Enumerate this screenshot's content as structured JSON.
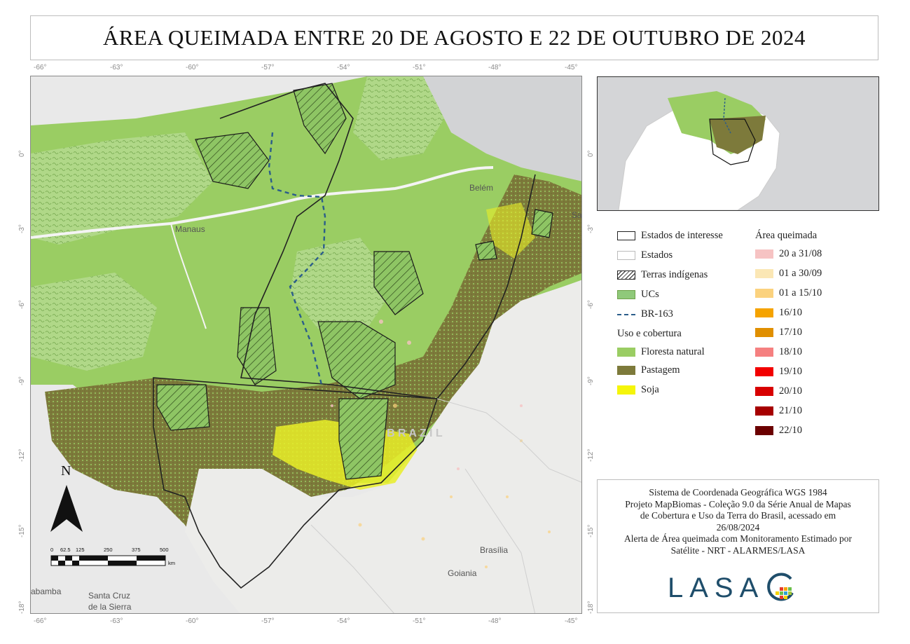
{
  "title": "ÁREA QUEIMADA ENTRE 20 DE AGOSTO E 22 DE OUTUBRO DE 2024",
  "longitude_ticks": [
    "-66°",
    "-63°",
    "-60°",
    "-57°",
    "-54°",
    "-51°",
    "-48°",
    "-45°"
  ],
  "latitude_ticks": [
    "0°",
    "-3°",
    "-6°",
    "-9°",
    "-12°",
    "-15°",
    "-18°"
  ],
  "place_labels": {
    "manaus": "Manaus",
    "belem": "Belém",
    "brazil": "B R A Z I L",
    "brasilia": "Brasília",
    "goiania": "Goiania",
    "santa_cruz_1": "Santa Cruz",
    "santa_cruz_2": "de la Sierra",
    "abamba": "abamba",
    "sa": "Sa"
  },
  "north_arrow": "N",
  "scale_bar": {
    "labels": [
      "0",
      "62.5",
      "125",
      "250",
      "375",
      "500"
    ],
    "unit": "km"
  },
  "legend": {
    "lines": [
      {
        "label": "Estados de interesse",
        "icon": "outlined-box",
        "color": "#222222"
      },
      {
        "label": "Estados",
        "icon": "light-outlined-box",
        "color": "#bbbbbb"
      },
      {
        "label": "Terras indígenas",
        "icon": "hatched-box",
        "color": "#222222"
      },
      {
        "label": "UCs",
        "icon": "green-pattern-box",
        "color": "#8fc97a"
      },
      {
        "label": "BR-163",
        "icon": "dashed-line",
        "color": "#2b5d8a"
      }
    ],
    "uso_title": "Uso e cobertura",
    "uso": [
      {
        "label": "Floresta natural",
        "color": "#9acd63"
      },
      {
        "label": "Pastagem",
        "color": "#7d7a3b"
      },
      {
        "label": "Soja",
        "color": "#f5f50a"
      }
    ],
    "burn_title": "Área queimada",
    "burn": [
      {
        "label": "20 a 31/08",
        "color": "#f6c3c3"
      },
      {
        "label": "01 a 30/09",
        "color": "#fbe7b5"
      },
      {
        "label": "01 a 15/10",
        "color": "#fbd27e"
      },
      {
        "label": "16/10",
        "color": "#f5a300"
      },
      {
        "label": "17/10",
        "color": "#e08f00"
      },
      {
        "label": "18/10",
        "color": "#f58080"
      },
      {
        "label": "19/10",
        "color": "#f20000"
      },
      {
        "label": "20/10",
        "color": "#d80000"
      },
      {
        "label": "21/10",
        "color": "#a60000"
      },
      {
        "label": "22/10",
        "color": "#6b0000"
      }
    ]
  },
  "credits": [
    "Sistema de Coordenada Geográfica WGS 1984",
    "Projeto MapBiomas - Coleção 9.0 da Série Anual de Mapas",
    "de Cobertura e Uso da Terra do Brasil, acessado em",
    "26/08/2024",
    "Alerta de Área queimada com Monitoramento Estimado por",
    "Satélite - NRT - ALARMES/LASA"
  ],
  "logo": "LASA"
}
